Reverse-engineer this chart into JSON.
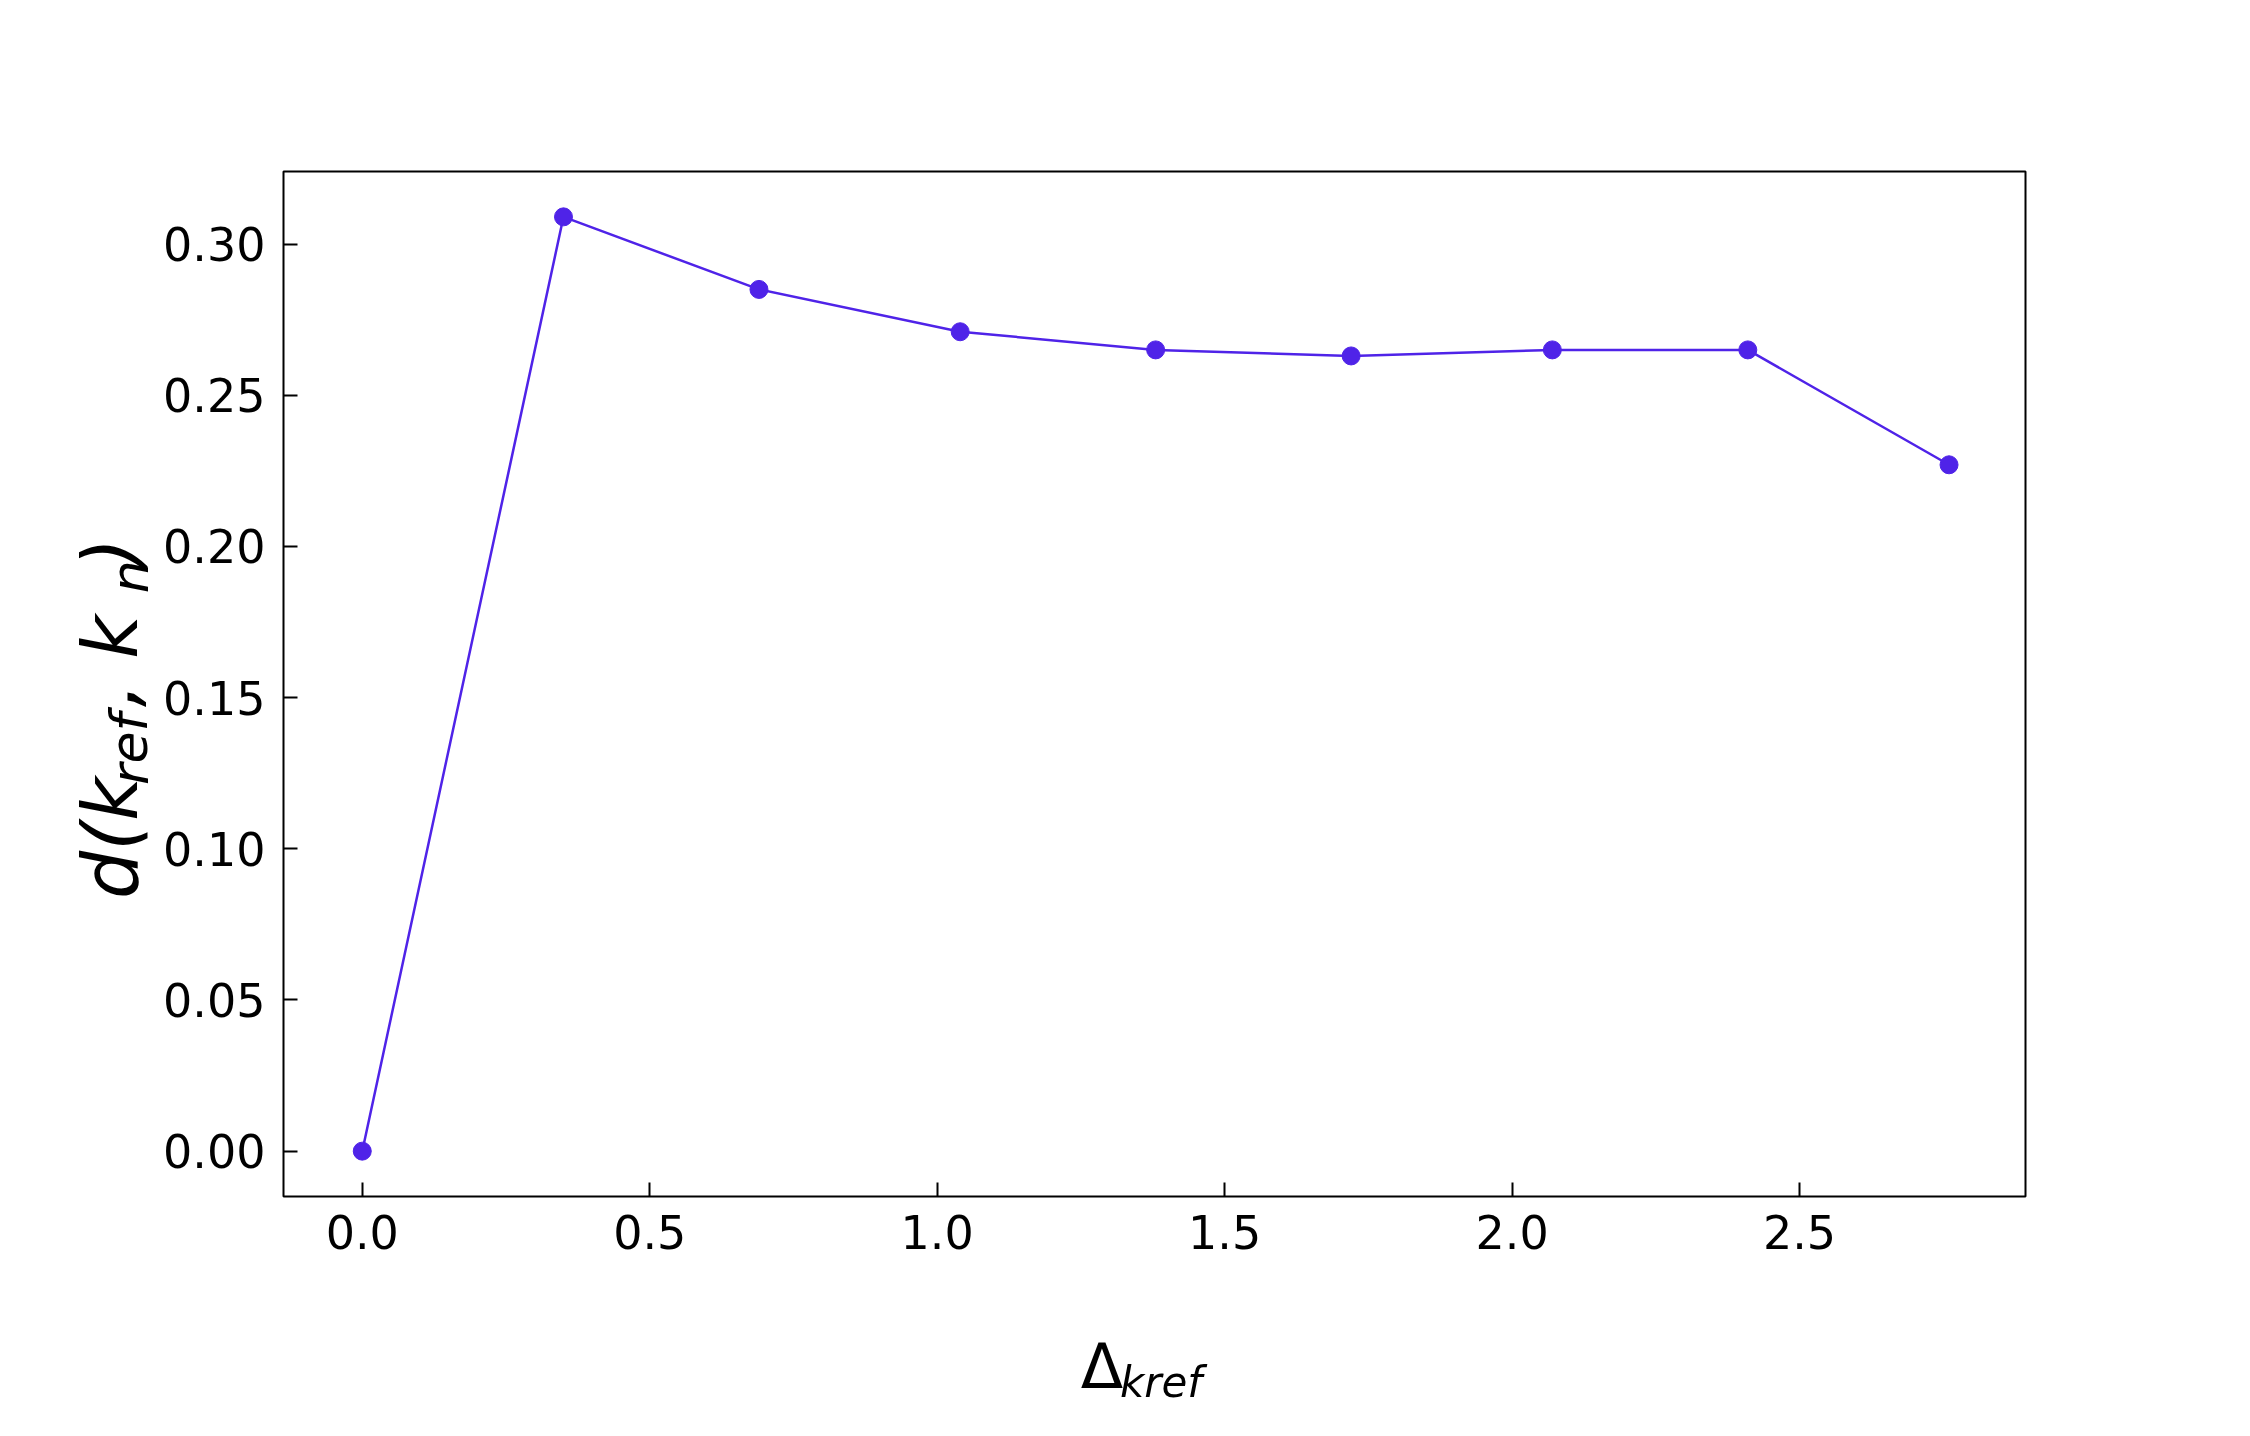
{
  "chart_data": {
    "type": "line",
    "xlabel": "Δ$_{kref}$",
    "ylabel": "d(k$_{ref}$, k$_{n}$)",
    "x": [
      0,
      0.35,
      0.69,
      1.04,
      1.38,
      1.72,
      2.07,
      2.41,
      2.76
    ],
    "series": [
      {
        "color": "#4f23e8",
        "values": [
          0,
          0.309,
          0.285,
          0.271,
          0.265,
          0.263,
          0.265,
          0.265,
          0.227
        ]
      }
    ],
    "marker": "circle",
    "line_style": "solid",
    "grid": false,
    "xlim": [
      -0.137,
      2.893
    ],
    "ylim": [
      -0.015,
      0.324
    ],
    "xticks": [
      {
        "value": 0,
        "label": "0.0"
      },
      {
        "value": 0.5,
        "label": "0.5"
      },
      {
        "value": 1,
        "label": "1.0"
      },
      {
        "value": 1.5,
        "label": "1.5"
      },
      {
        "value": 2,
        "label": "2.0"
      },
      {
        "value": 2.5,
        "label": "2.5"
      }
    ],
    "yticks": [
      {
        "value": 0,
        "label": "0.00"
      },
      {
        "value": 0.05,
        "label": "0.05"
      },
      {
        "value": 0.1,
        "label": "0.10"
      },
      {
        "value": 0.15,
        "label": "0.15"
      },
      {
        "value": 0.2,
        "label": "0.20"
      },
      {
        "value": 0.25,
        "label": "0.25"
      },
      {
        "value": 0.3,
        "label": "0.30"
      }
    ]
  }
}
